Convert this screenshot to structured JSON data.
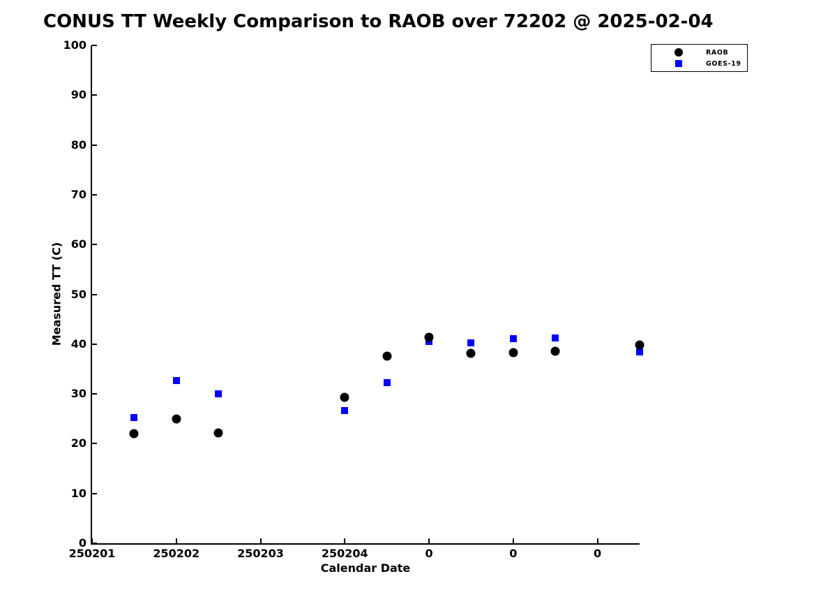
{
  "chart_data": {
    "type": "scatter",
    "title": "CONUS TT Weekly Comparison to RAOB over 72202 @ 2025-02-04",
    "xlabel": "Calendar Date",
    "ylabel": "Measured TT (C)",
    "x_unit": "days since 250201",
    "xlim": [
      0,
      6.5
    ],
    "ylim": [
      0,
      100
    ],
    "grid": false,
    "legend_position": "top-right",
    "x_ticks": [
      {
        "pos": 0,
        "label": "250201"
      },
      {
        "pos": 1,
        "label": "250202"
      },
      {
        "pos": 2,
        "label": "250203"
      },
      {
        "pos": 3,
        "label": "250204"
      },
      {
        "pos": 4,
        "label": "0"
      },
      {
        "pos": 5,
        "label": "0"
      },
      {
        "pos": 6,
        "label": "0"
      }
    ],
    "y_ticks": [
      0,
      10,
      20,
      30,
      40,
      50,
      60,
      70,
      80,
      90,
      100
    ],
    "x": [
      0.5,
      1.0,
      1.5,
      3.0,
      3.5,
      4.0,
      4.5,
      5.0,
      5.5,
      6.5
    ],
    "series": [
      {
        "name": "RAOB",
        "marker": "circle",
        "color": "#000000",
        "values": [
          22.0,
          25.0,
          22.2,
          29.3,
          37.6,
          41.4,
          38.2,
          38.3,
          38.6,
          39.8
        ]
      },
      {
        "name": "GOES-19",
        "marker": "square",
        "color": "#0000ff",
        "values": [
          25.3,
          32.7,
          30.0,
          26.7,
          32.2,
          40.6,
          40.3,
          41.1,
          41.3,
          38.4
        ]
      }
    ]
  }
}
